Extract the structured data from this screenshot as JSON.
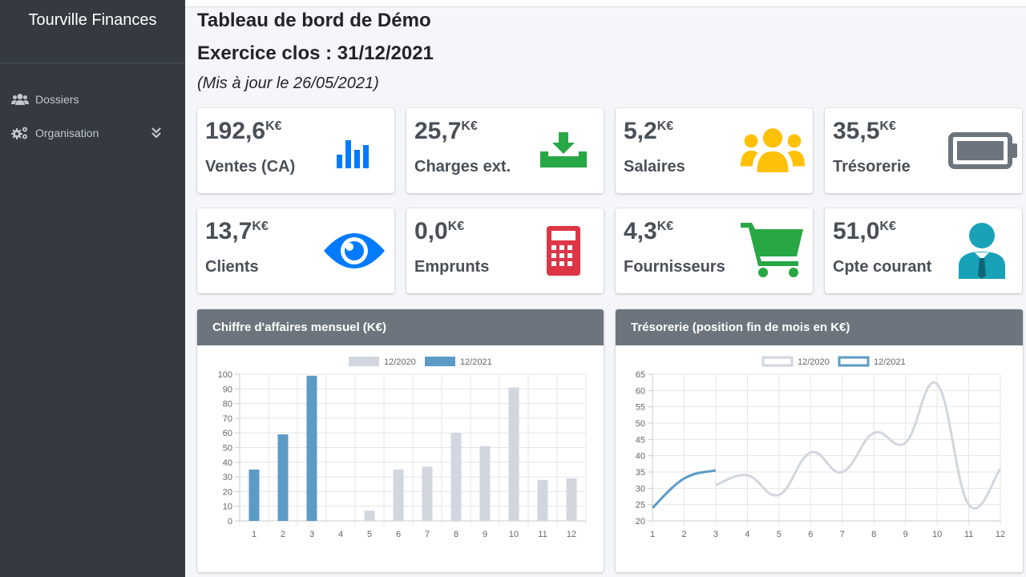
{
  "sidebar": {
    "brand": "Tourville Finances",
    "items": [
      {
        "label": "Dossiers",
        "icon": "users-icon"
      },
      {
        "label": "Organisation",
        "icon": "cogs-icon",
        "expand_icon": "double-chevron-down-icon"
      }
    ]
  },
  "header": {
    "title": "Tableau de bord de Démo",
    "subtitle": "Exercice clos : 31/12/2021",
    "updated": "(Mis à jour le 26/05/2021)"
  },
  "kpis": [
    {
      "value": "192,6",
      "unit": "K€",
      "label": "Ventes (CA)",
      "icon": "bar-chart-icon",
      "color": "#007bff"
    },
    {
      "value": "25,7",
      "unit": "K€",
      "label": "Charges ext.",
      "icon": "download-icon",
      "color": "#28a745"
    },
    {
      "value": "5,2",
      "unit": "K€",
      "label": "Salaires",
      "icon": "users-icon",
      "color": "#ffc107"
    },
    {
      "value": "35,5",
      "unit": "K€",
      "label": "Trésorerie",
      "icon": "battery-icon",
      "color": "#6c757d"
    },
    {
      "value": "13,7",
      "unit": "K€",
      "label": "Clients",
      "icon": "eye-icon",
      "color": "#007bff"
    },
    {
      "value": "0,0",
      "unit": "K€",
      "label": "Emprunts",
      "icon": "calculator-icon",
      "color": "#dc3545"
    },
    {
      "value": "4,3",
      "unit": "K€",
      "label": "Fournisseurs",
      "icon": "shopping-cart-icon",
      "color": "#28a745"
    },
    {
      "value": "51,0",
      "unit": "K€",
      "label": "Cpte courant",
      "icon": "user-tie-icon",
      "color": "#17a2b8"
    }
  ],
  "charts": {
    "revenue_title": "Chiffre d'affaires mensuel (K€)",
    "treasury_title": "Trésorerie (position fin de mois en K€)"
  },
  "chart_data": [
    {
      "type": "bar",
      "title": "Chiffre d'affaires mensuel (K€)",
      "categories": [
        "1",
        "2",
        "3",
        "4",
        "5",
        "6",
        "7",
        "8",
        "9",
        "10",
        "11",
        "12"
      ],
      "ylim": [
        0,
        100
      ],
      "yticks": [
        0,
        10,
        20,
        30,
        40,
        50,
        60,
        70,
        80,
        90,
        100
      ],
      "legend": "top",
      "grid": true,
      "series": [
        {
          "name": "12/2020",
          "color": "#d2d6de",
          "values": [
            null,
            null,
            null,
            0,
            7,
            35,
            37,
            60,
            51,
            91,
            28,
            29
          ]
        },
        {
          "name": "12/2021",
          "color": "#5b9bc6",
          "values": [
            35,
            59,
            99,
            null,
            null,
            null,
            null,
            null,
            null,
            null,
            null,
            null
          ]
        }
      ]
    },
    {
      "type": "line",
      "title": "Trésorerie (position fin de mois en K€)",
      "categories": [
        "1",
        "2",
        "3",
        "4",
        "5",
        "6",
        "7",
        "8",
        "9",
        "10",
        "11",
        "12"
      ],
      "ylim": [
        20,
        65
      ],
      "yticks": [
        20,
        25,
        30,
        35,
        40,
        45,
        50,
        55,
        60,
        65
      ],
      "legend": "top",
      "grid": true,
      "series": [
        {
          "name": "12/2020",
          "color": "#d2d6de",
          "values": [
            null,
            null,
            31,
            34,
            28,
            41,
            35,
            47,
            44,
            62,
            25,
            36
          ]
        },
        {
          "name": "12/2021",
          "color": "#5b9bc6",
          "values": [
            24,
            33,
            35.5,
            null,
            null,
            null,
            null,
            null,
            null,
            null,
            null,
            null
          ]
        }
      ]
    }
  ]
}
